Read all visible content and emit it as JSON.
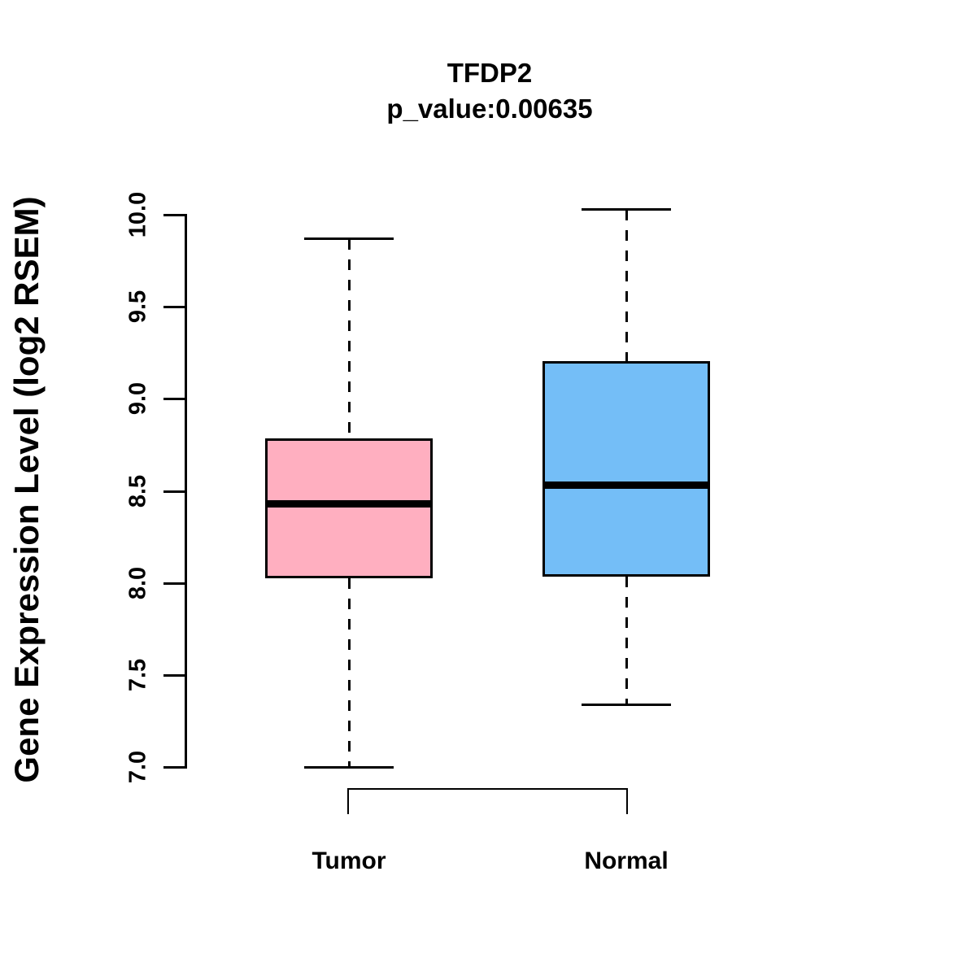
{
  "title": "TFDP2",
  "subtitle": "p_value:0.00635",
  "y_axis": {
    "label": "Gene Expression Level (log2 RSEM)",
    "tick_labels": [
      "7.0",
      "7.5",
      "8.0",
      "8.5",
      "9.0",
      "9.5",
      "10.0"
    ]
  },
  "colors": {
    "tumor_fill": "#FFAFC0",
    "normal_fill": "#74BEF7",
    "line": "#000000",
    "background": "#FFFFFF"
  },
  "chart_data": {
    "type": "boxplot",
    "title": "TFDP2",
    "subtitle": "p_value:0.00635",
    "ylabel": "Gene Expression Level (log2 RSEM)",
    "ylim": [
      7.0,
      10.0
    ],
    "ytick_step": 0.5,
    "grid": false,
    "categories": [
      "Tumor",
      "Normal"
    ],
    "series": [
      {
        "name": "Tumor",
        "min": 7.0,
        "q1": 8.03,
        "median": 8.43,
        "q3": 8.78,
        "max": 9.87,
        "color": "#FFAFC0"
      },
      {
        "name": "Normal",
        "min": 7.34,
        "q1": 8.04,
        "median": 8.53,
        "q3": 9.2,
        "max": 10.03,
        "color": "#74BEF7"
      }
    ],
    "annotations": [
      "comparison bracket between Tumor and Normal below axis"
    ]
  }
}
